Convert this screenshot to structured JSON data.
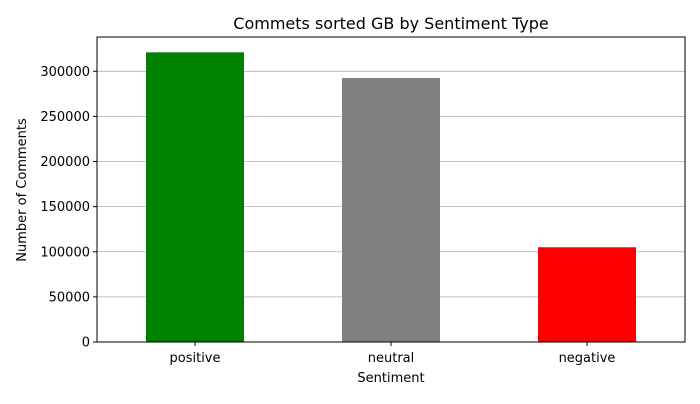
{
  "chart_data": {
    "type": "bar",
    "title": "Commets sorted GB by Sentiment Type",
    "xlabel": "Sentiment",
    "ylabel": "Number of Comments",
    "categories": [
      "positive",
      "neutral",
      "negative"
    ],
    "values": [
      321000,
      292500,
      105000
    ],
    "colors": [
      "#008000",
      "#808080",
      "#ff0000"
    ],
    "ylim": [
      0,
      338000
    ],
    "yticks": [
      0,
      50000,
      100000,
      150000,
      200000,
      250000,
      300000
    ],
    "grid": "y",
    "legend": "none"
  }
}
